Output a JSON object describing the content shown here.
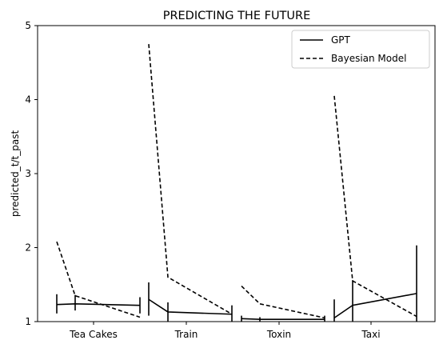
{
  "chart_data": {
    "type": "line",
    "title": "PREDICTING THE FUTURE",
    "xlabel": "",
    "ylabel": "predicted_t/t_past",
    "ylim": [
      1,
      5
    ],
    "yticks": [
      "1",
      "2",
      "3",
      "4",
      "5"
    ],
    "categories": [
      "Tea Cakes",
      "Train",
      "Toxin",
      "Taxi"
    ],
    "grid": false,
    "legend_position": "top-right",
    "series": [
      {
        "name": "GPT",
        "style": "solid",
        "color": "#000000",
        "groups": [
          {
            "category": "Tea Cakes",
            "values": [
              1.23,
              1.24,
              1.22
            ],
            "err_low": [
              1.11,
              1.15,
              1.11
            ],
            "err_high": [
              1.37,
              1.36,
              1.33
            ]
          },
          {
            "category": "Train",
            "values": [
              1.3,
              1.13,
              1.1
            ],
            "err_low": [
              1.08,
              1.0,
              1.0
            ],
            "err_high": [
              1.53,
              1.26,
              1.22
            ]
          },
          {
            "category": "Toxin",
            "values": [
              1.04,
              1.03,
              1.03
            ],
            "err_low": [
              1.0,
              1.0,
              1.0
            ],
            "err_high": [
              1.08,
              1.06,
              1.08
            ]
          },
          {
            "category": "Taxi",
            "values": [
              1.05,
              1.22,
              1.38
            ],
            "err_low": [
              1.0,
              1.0,
              1.0
            ],
            "err_high": [
              1.3,
              1.56,
              2.03
            ]
          }
        ]
      },
      {
        "name": "Bayesian Model",
        "style": "dashed",
        "color": "#000000",
        "groups": [
          {
            "category": "Tea Cakes",
            "values": [
              2.08,
              1.35,
              1.06
            ]
          },
          {
            "category": "Train",
            "values": [
              4.75,
              1.6,
              1.1
            ]
          },
          {
            "category": "Toxin",
            "values": [
              1.48,
              1.24,
              1.05
            ]
          },
          {
            "category": "Taxi",
            "values": [
              4.05,
              1.55,
              1.07
            ]
          }
        ]
      }
    ]
  }
}
